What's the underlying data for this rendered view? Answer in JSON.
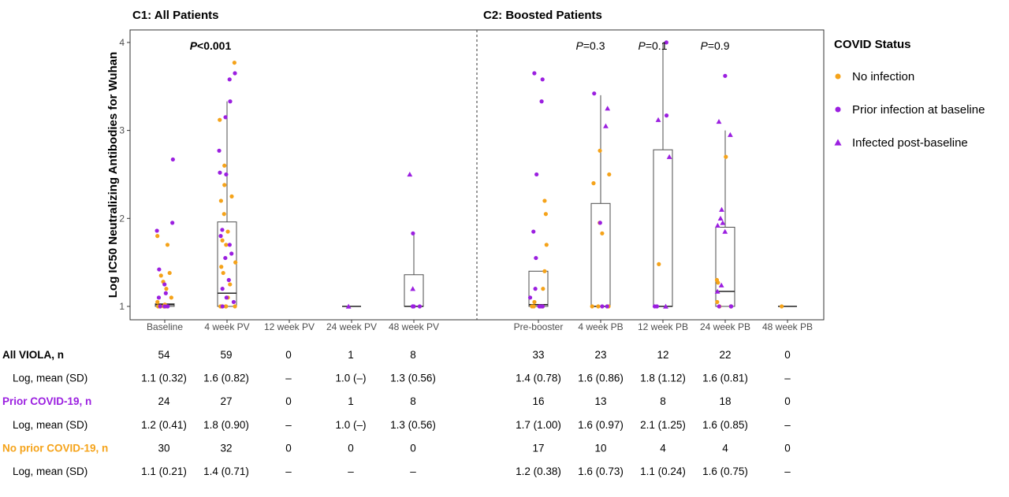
{
  "chart_data": {
    "type": "box",
    "ylabel": "Log IC50 Neutralizing Antibodies for Wuhan",
    "ylim": [
      0.8,
      4.15
    ],
    "yticks": [
      1,
      2,
      3,
      4
    ],
    "grid": false,
    "colors": {
      "no_infection": "#F5A31A",
      "prior_infection": "#9B1FE0",
      "infected_post": "#9B1FE0",
      "box": "#4d4d4d"
    },
    "legend": {
      "position": "right",
      "title": "COVID Status",
      "entries": [
        {
          "label": "No infection",
          "marker": "circle",
          "color": "#F5A31A"
        },
        {
          "label": "Prior infection at baseline",
          "marker": "circle",
          "color": "#9B1FE0"
        },
        {
          "label": "Infected post-baseline",
          "marker": "triangle",
          "color": "#9B1FE0"
        }
      ]
    },
    "panels": [
      {
        "title": "C1: All Patients",
        "pvalues": [
          {
            "text": "P<0.001",
            "bold": true,
            "after_group": 0.3
          }
        ],
        "groups": [
          {
            "label": "Baseline",
            "box": {
              "q1": 1.0,
              "median": 1.02,
              "q3": 1.03,
              "lo": 1.0,
              "hi": 1.03
            },
            "no": [
              1.0,
              1.0,
              1.0,
              1.0,
              1.0,
              1.02,
              1.05,
              1.1,
              1.2,
              1.28,
              1.35,
              1.38,
              1.7,
              1.8
            ],
            "prior": [
              1.0,
              1.0,
              1.0,
              1.1,
              1.15,
              1.25,
              1.42,
              1.86,
              1.95,
              2.67
            ],
            "tri": []
          },
          {
            "label": "4 week PV",
            "box": {
              "q1": 1.0,
              "median": 1.15,
              "q3": 1.96,
              "lo": 1.0,
              "hi": 3.33
            },
            "no": [
              1.0,
              1.0,
              1.0,
              1.0,
              1.0,
              1.1,
              1.25,
              1.38,
              1.45,
              1.5,
              1.7,
              1.75,
              1.85,
              2.05,
              2.2,
              2.25,
              2.38,
              2.6,
              3.12,
              3.77
            ],
            "prior": [
              1.0,
              1.05,
              1.1,
              1.2,
              1.3,
              1.55,
              1.6,
              1.7,
              1.8,
              1.87,
              2.5,
              2.52,
              2.77,
              3.15,
              3.33,
              3.58,
              3.65
            ],
            "tri": []
          },
          {
            "label": "12 week PV",
            "box": null,
            "no": [],
            "prior": [],
            "tri": []
          },
          {
            "label": "24 week PV",
            "box": {
              "q1": 1.0,
              "median": 1.0,
              "q3": 1.0,
              "lo": 1.0,
              "hi": 1.0
            },
            "no": [],
            "prior": [],
            "tri": [
              1.0
            ]
          },
          {
            "label": "48 week PV",
            "box": {
              "q1": 1.0,
              "median": 1.0,
              "q3": 1.36,
              "lo": 1.0,
              "hi": 1.83
            },
            "no": [],
            "prior": [
              1.0,
              1.0,
              1.0,
              1.0,
              1.83
            ],
            "tri": [
              1.2,
              2.5
            ]
          }
        ]
      },
      {
        "title": "C2: Boosted Patients",
        "pvalues": [
          {
            "text": "P=0.3",
            "bold": false,
            "after_group": 0.5
          },
          {
            "text": "P=0.1",
            "bold": false,
            "after_group": 1.5
          },
          {
            "text": "P=0.9",
            "bold": false,
            "after_group": 2.5
          }
        ],
        "groups": [
          {
            "label": "Pre-booster",
            "box": {
              "q1": 1.0,
              "median": 1.02,
              "q3": 1.4,
              "lo": 1.0,
              "hi": 1.4
            },
            "no": [
              1.0,
              1.0,
              1.0,
              1.05,
              1.2,
              1.4,
              1.7,
              2.05,
              2.2
            ],
            "prior": [
              1.0,
              1.0,
              1.0,
              1.1,
              1.2,
              1.55,
              1.85,
              2.5,
              3.33,
              3.58,
              3.65
            ],
            "tri": []
          },
          {
            "label": "4 week PB",
            "box": {
              "q1": 1.0,
              "median": 1.0,
              "q3": 2.17,
              "lo": 1.0,
              "hi": 3.4
            },
            "no": [
              1.0,
              1.0,
              1.0,
              1.83,
              1.95,
              2.4,
              2.5,
              2.77
            ],
            "prior": [
              1.0,
              1.0,
              1.95,
              3.42
            ],
            "tri": [
              3.05,
              3.25
            ]
          },
          {
            "label": "12 week PB",
            "box": {
              "q1": 1.0,
              "median": 1.0,
              "q3": 2.78,
              "lo": 1.0,
              "hi": 4.0
            },
            "no": [
              1.48
            ],
            "prior": [
              1.0,
              1.0,
              3.17,
              4.0
            ],
            "tri": [
              1.0,
              2.7,
              3.12
            ]
          },
          {
            "label": "24 week PB",
            "box": {
              "q1": 1.0,
              "median": 1.17,
              "q3": 1.9,
              "lo": 1.0,
              "hi": 3.0
            },
            "no": [
              1.0,
              1.0,
              1.05,
              1.27,
              1.3,
              2.7
            ],
            "prior": [
              1.0,
              1.0,
              1.0,
              3.62
            ],
            "tri": [
              1.17,
              1.24,
              1.85,
              1.92,
              1.95,
              2.0,
              2.1,
              2.95,
              3.1
            ]
          },
          {
            "label": "48 week PB",
            "box": {
              "q1": 1.0,
              "median": 1.0,
              "q3": 1.0,
              "lo": 1.0,
              "hi": 1.0
            },
            "no": [
              1.0
            ],
            "prior": [],
            "tri": []
          }
        ]
      }
    ]
  },
  "table": {
    "rows": [
      {
        "label": "All VIOLA, n",
        "style": "bold",
        "color": "#000000",
        "c1": [
          "54",
          "59",
          "0",
          "1",
          "8"
        ],
        "c2": [
          "33",
          "23",
          "12",
          "22",
          "0"
        ]
      },
      {
        "label": "Log, mean (SD)",
        "style": "indent",
        "color": "#000000",
        "c1": [
          "1.1 (0.32)",
          "1.6 (0.82)",
          "–",
          "1.0 (–)",
          "1.3 (0.56)"
        ],
        "c2": [
          "1.4 (0.78)",
          "1.6 (0.86)",
          "1.8 (1.12)",
          "1.6 (0.81)",
          "–"
        ]
      },
      {
        "label": "Prior COVID-19, n",
        "style": "bold",
        "color": "#9B1FE0",
        "c1": [
          "24",
          "27",
          "0",
          "1",
          "8"
        ],
        "c2": [
          "16",
          "13",
          "8",
          "18",
          "0"
        ]
      },
      {
        "label": "Log, mean (SD)",
        "style": "indent",
        "color": "#000000",
        "c1": [
          "1.2 (0.41)",
          "1.8 (0.90)",
          "–",
          "1.0 (–)",
          "1.3 (0.56)"
        ],
        "c2": [
          "1.7 (1.00)",
          "1.6 (0.97)",
          "2.1 (1.25)",
          "1.6 (0.85)",
          "–"
        ]
      },
      {
        "label": "No prior COVID-19, n",
        "style": "bold",
        "color": "#F5A31A",
        "c1": [
          "30",
          "32",
          "0",
          "0",
          "0"
        ],
        "c2": [
          "17",
          "10",
          "4",
          "4",
          "0"
        ]
      },
      {
        "label": "Log, mean (SD)",
        "style": "indent",
        "color": "#000000",
        "c1": [
          "1.1 (0.21)",
          "1.4 (0.71)",
          "–",
          "–",
          "–"
        ],
        "c2": [
          "1.2 (0.38)",
          "1.6 (0.73)",
          "1.1 (0.24)",
          "1.6 (0.75)",
          "–"
        ]
      }
    ]
  }
}
